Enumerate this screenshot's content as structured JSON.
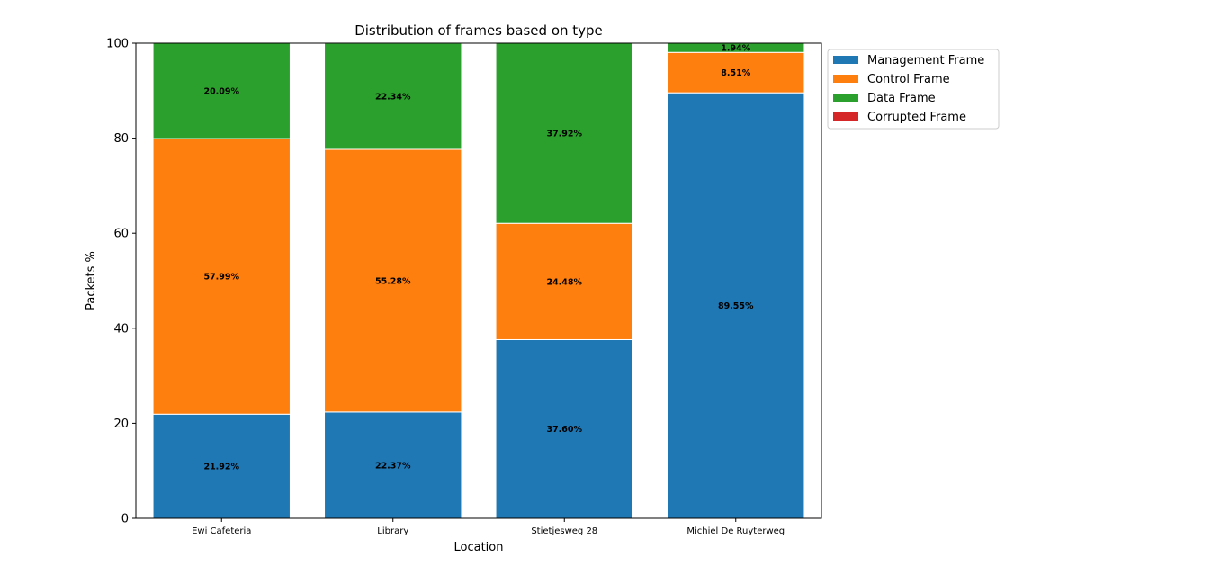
{
  "chart_data": {
    "type": "bar",
    "stacked": true,
    "title": "Distribution of frames based on type",
    "xlabel": "Location",
    "ylabel": "Packets %",
    "ylim": [
      0,
      100
    ],
    "yticks": [
      "0",
      "20",
      "40",
      "60",
      "80",
      "100"
    ],
    "categories": [
      "Ewi Cafeteria",
      "Library",
      "Stietjesweg 28",
      "Michiel De Ruyterweg"
    ],
    "series": [
      {
        "name": "Management Frame",
        "color": "#1f77b4",
        "values": [
          21.92,
          22.37,
          37.6,
          89.55
        ],
        "labels": [
          "21.92%",
          "22.37%",
          "37.60%",
          "89.55%"
        ]
      },
      {
        "name": "Control Frame",
        "color": "#ff7f0e",
        "values": [
          57.99,
          55.28,
          24.48,
          8.51
        ],
        "labels": [
          "57.99%",
          "55.28%",
          "24.48%",
          "8.51%"
        ]
      },
      {
        "name": "Data Frame",
        "color": "#2ca02c",
        "values": [
          20.09,
          22.34,
          37.92,
          1.94
        ],
        "labels": [
          "20.09%",
          "22.34%",
          "37.92%",
          "1.94%"
        ]
      },
      {
        "name": "Corrupted Frame",
        "color": "#d62728",
        "values": [
          0,
          0,
          0,
          0
        ],
        "labels": []
      }
    ],
    "legend_position": "outside-top-right",
    "grid": false
  }
}
